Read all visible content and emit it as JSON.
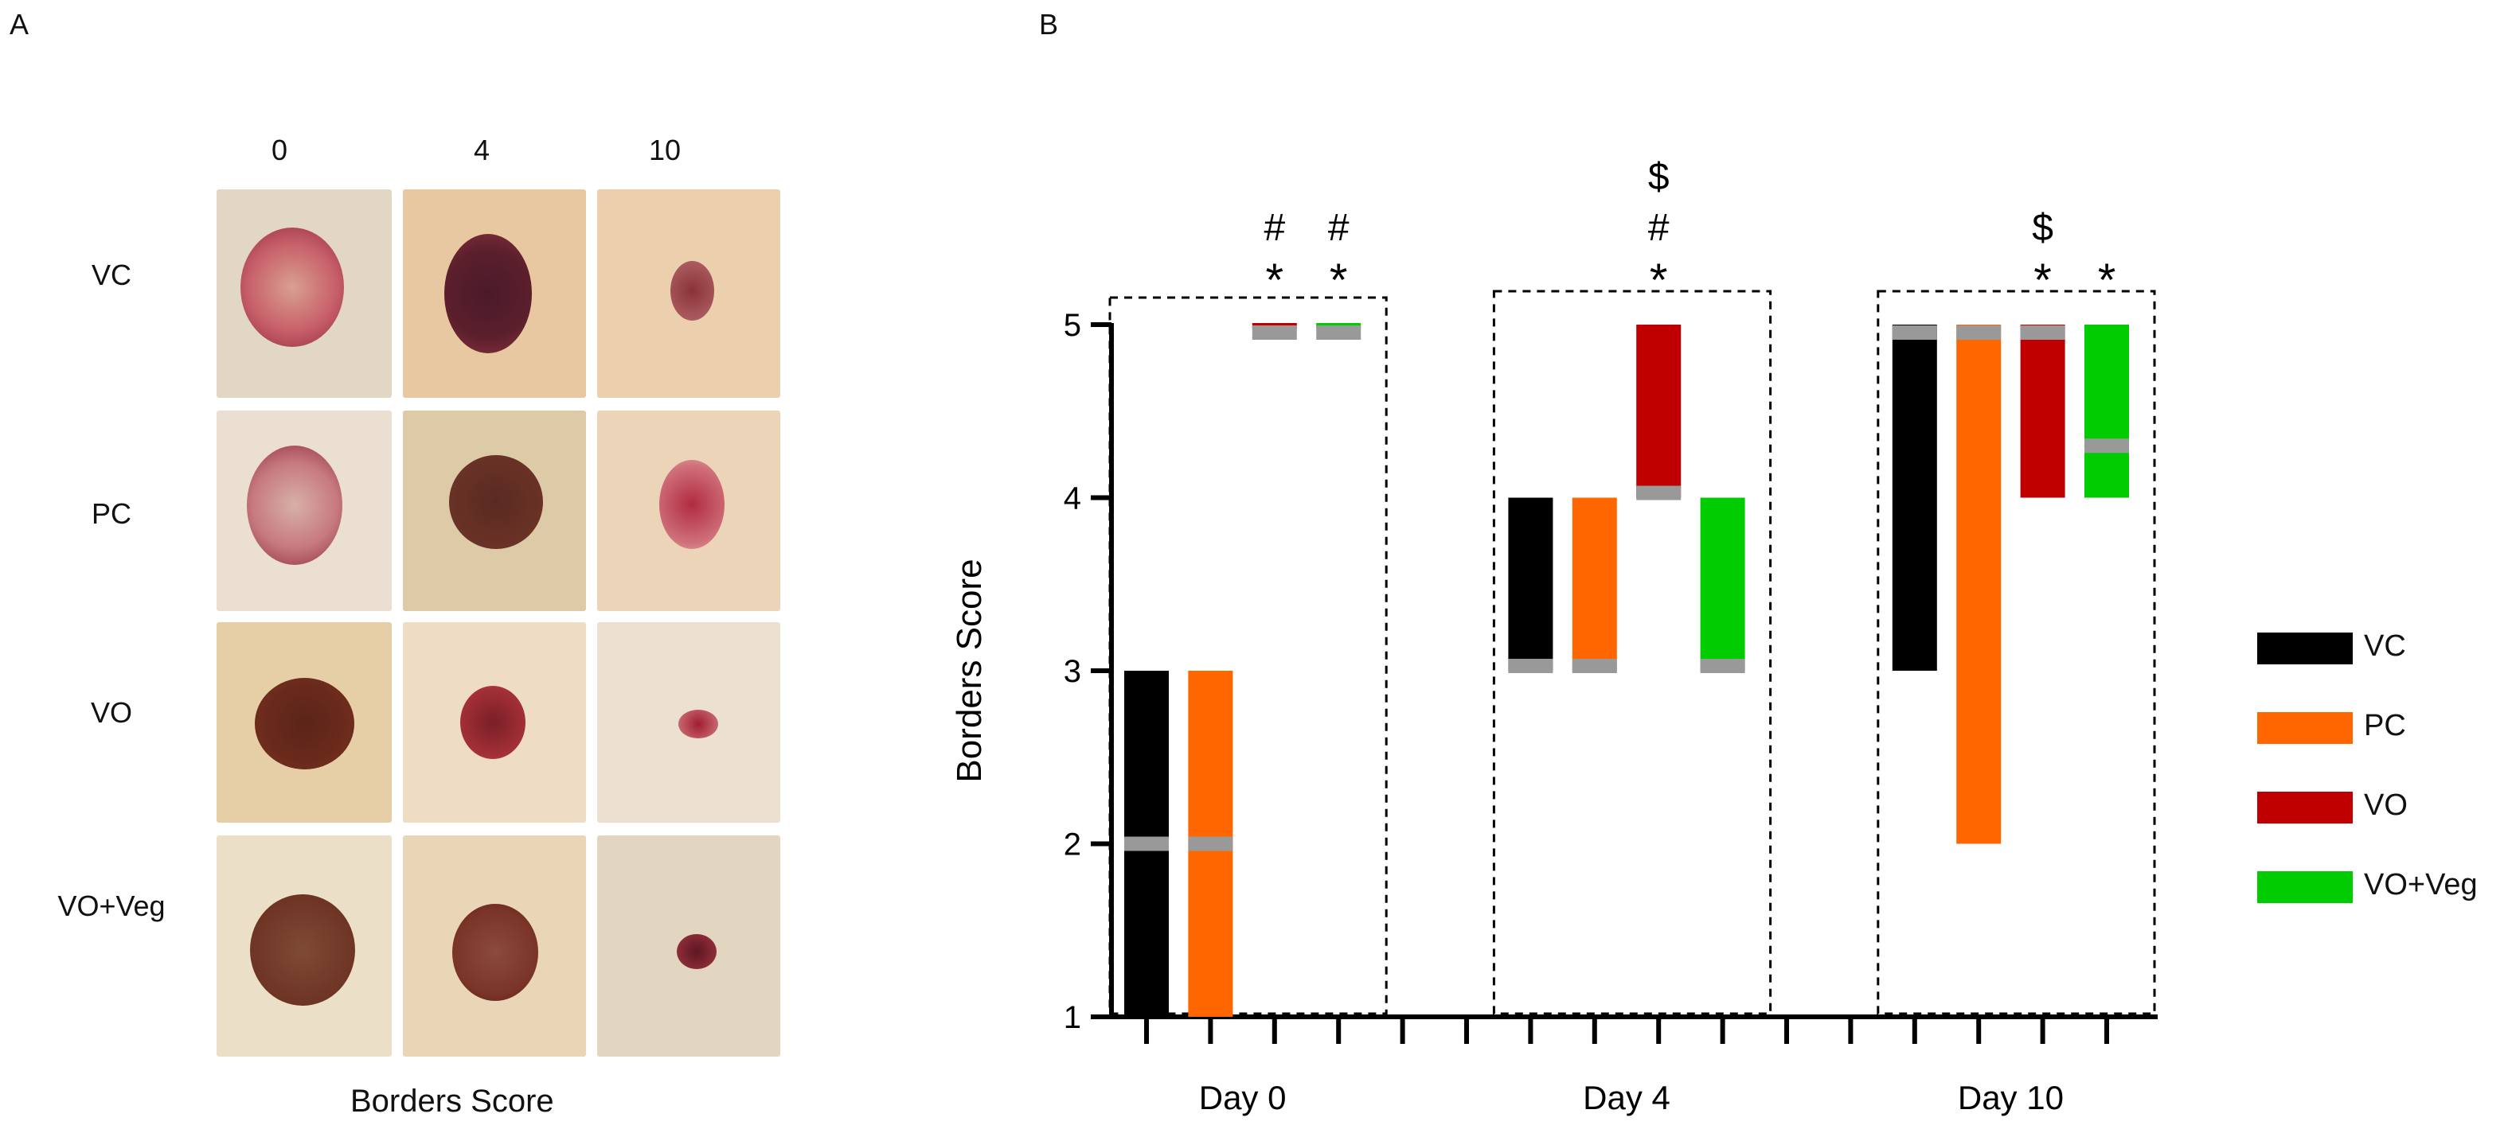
{
  "panel_a": {
    "label": "A",
    "days": [
      "0",
      "4",
      "10"
    ],
    "groups": [
      "VC",
      "PC",
      "VO",
      "VO+Veg"
    ],
    "caption": "Borders Score"
  },
  "panel_b_label": "B",
  "colors": {
    "VC": "#000000",
    "PC": "#ff6600",
    "VO": "#c00000",
    "VO+Veg": "#00cc00",
    "median": "#999999"
  },
  "chart_data": {
    "type": "bar",
    "subtype": "floating range bars with median line",
    "ylabel": "Borders Score",
    "xlabel": "",
    "ylim": [
      1,
      5
    ],
    "yticks": [
      1,
      2,
      3,
      4,
      5
    ],
    "categories": [
      "Day 0",
      "Day 4",
      "Day 10"
    ],
    "legend": [
      "VC",
      "PC",
      "VO",
      "VO+Veg"
    ],
    "legend_position": "right",
    "series": [
      {
        "name": "VC",
        "ranges": [
          {
            "min": 1,
            "max": 3,
            "median": 2
          },
          {
            "min": 3,
            "max": 4,
            "median": 3
          },
          {
            "min": 3,
            "max": 5,
            "median": 5
          }
        ]
      },
      {
        "name": "PC",
        "ranges": [
          {
            "min": 1,
            "max": 3,
            "median": 2
          },
          {
            "min": 3,
            "max": 4,
            "median": 3
          },
          {
            "min": 2,
            "max": 5,
            "median": 5
          }
        ]
      },
      {
        "name": "VO",
        "ranges": [
          {
            "min": 5,
            "max": 5,
            "median": 5
          },
          {
            "min": 4,
            "max": 5,
            "median": 4
          },
          {
            "min": 4,
            "max": 5,
            "median": 5
          }
        ]
      },
      {
        "name": "VO+Veg",
        "ranges": [
          {
            "min": 5,
            "max": 5,
            "median": 5
          },
          {
            "min": 3,
            "max": 4,
            "median": 3
          },
          {
            "min": 4,
            "max": 5,
            "median": 4.3
          }
        ]
      }
    ],
    "annotations": [
      {
        "day": 0,
        "group": "VO",
        "text": [
          "#",
          "*"
        ]
      },
      {
        "day": 0,
        "group": "VO+Veg",
        "text": [
          "#",
          "*"
        ]
      },
      {
        "day": 1,
        "group": "VO",
        "text": [
          "$",
          "#",
          "*"
        ]
      },
      {
        "day": 2,
        "group": "VO",
        "text": [
          "$",
          "*"
        ]
      },
      {
        "day": 2,
        "group": "VO+Veg",
        "text": [
          "*"
        ]
      }
    ]
  }
}
